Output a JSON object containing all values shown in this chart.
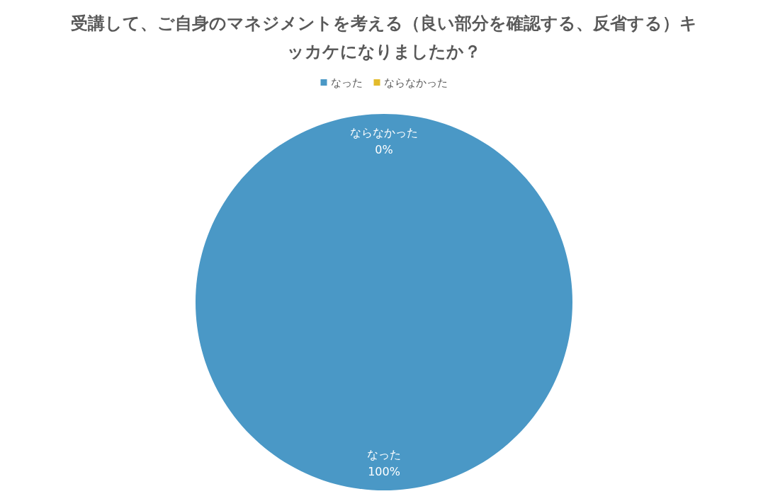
{
  "chart_data": {
    "type": "pie",
    "title": "受講して、ご自身のマネジメントを考える（良い部分を確認する、反省する）キッカケになりましたか？",
    "categories": [
      "なった",
      "ならなかった"
    ],
    "values": [
      100,
      0
    ],
    "colors": [
      "#4a98c6",
      "#e3bb2c"
    ],
    "value_labels": [
      "100%",
      "0%"
    ],
    "legend": "top"
  }
}
